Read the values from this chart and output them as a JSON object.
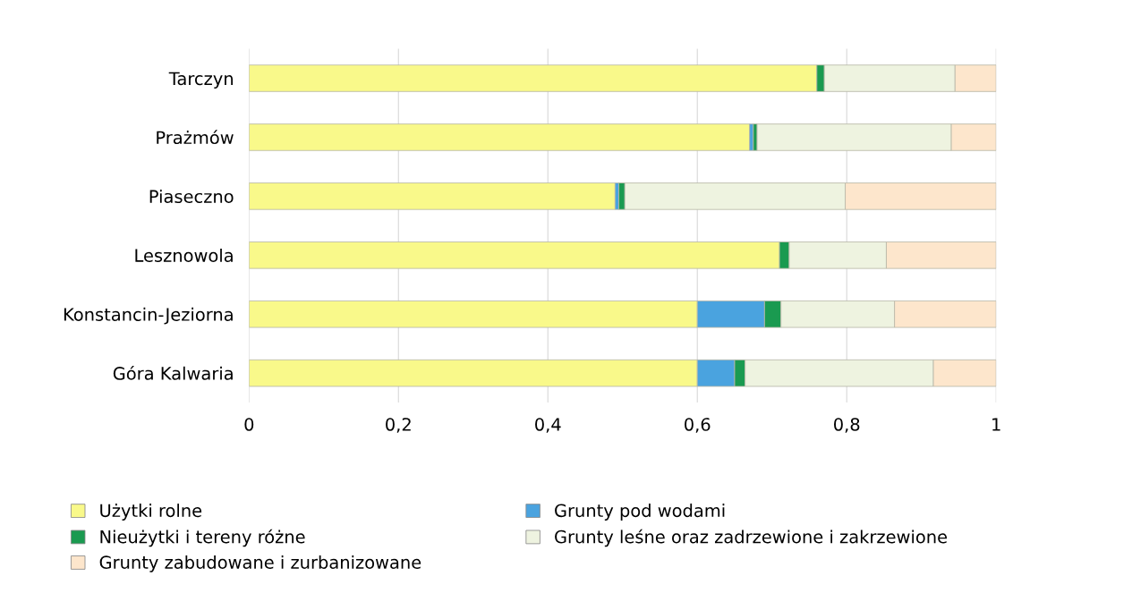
{
  "chart_data": {
    "type": "bar",
    "orientation": "horizontal",
    "stacked": true,
    "categories": [
      "Tarczyn",
      "Prażmów",
      "Piaseczno",
      "Lesznowola",
      "Konstancin-Jeziorna",
      "Góra Kalwaria"
    ],
    "series": [
      {
        "name": "Użytki rolne",
        "color": "#f9f98a",
        "values": [
          0.76,
          0.67,
          0.49,
          0.71,
          0.6,
          0.6
        ]
      },
      {
        "name": "Grunty pod wodami",
        "color": "#4aa3df",
        "values": [
          null,
          0.005,
          0.005,
          null,
          0.09,
          0.05
        ]
      },
      {
        "name": "Nieużytki i tereny różne",
        "color": "#1a9a50",
        "values": [
          0.01,
          0.005,
          0.008,
          0.013,
          0.022,
          0.014
        ]
      },
      {
        "name": "Grunty leśne oraz zadrzewione i zakrzewione",
        "color": "#eef3e0",
        "values": [
          0.175,
          0.26,
          0.295,
          0.13,
          0.152,
          0.252
        ]
      },
      {
        "name": "Grunty zabudowane i zurbanizowane",
        "color": "#fde6cc",
        "values": [
          0.055,
          0.06,
          0.202,
          0.147,
          0.136,
          0.084
        ]
      }
    ],
    "xlim": [
      0,
      1
    ],
    "xticks": [
      0,
      {
        "value": 0.2,
        "label": "0,2"
      },
      {
        "value": 0.4,
        "label": "0,4"
      },
      {
        "value": 0.6,
        "label": "0,6"
      },
      {
        "value": 0.8,
        "label": "0,8"
      },
      1
    ],
    "grid": "x",
    "legend": "bottom"
  }
}
